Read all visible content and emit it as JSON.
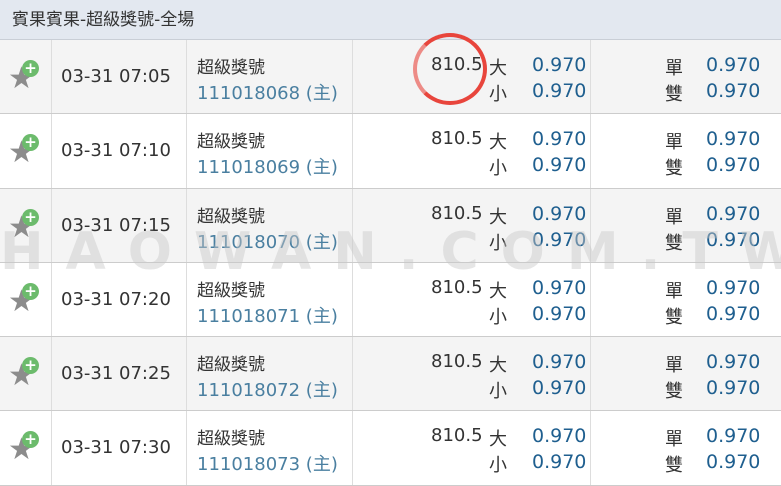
{
  "title": "賓果賓果-超級獎號-全場",
  "watermark": "HAOWAN.COM.TW",
  "labels": {
    "big": "大",
    "small": "小",
    "odd": "單",
    "even": "雙"
  },
  "rows": [
    {
      "time": "03-31 07:05",
      "game": "超級獎號",
      "id": "111018068 (主)",
      "line": "810.5",
      "big": "0.970",
      "small": "0.970",
      "odd": "0.970",
      "even": "0.970"
    },
    {
      "time": "03-31 07:10",
      "game": "超級獎號",
      "id": "111018069 (主)",
      "line": "810.5",
      "big": "0.970",
      "small": "0.970",
      "odd": "0.970",
      "even": "0.970"
    },
    {
      "time": "03-31 07:15",
      "game": "超級獎號",
      "id": "111018070 (主)",
      "line": "810.5",
      "big": "0.970",
      "small": "0.970",
      "odd": "0.970",
      "even": "0.970"
    },
    {
      "time": "03-31 07:20",
      "game": "超級獎號",
      "id": "111018071 (主)",
      "line": "810.5",
      "big": "0.970",
      "small": "0.970",
      "odd": "0.970",
      "even": "0.970"
    },
    {
      "time": "03-31 07:25",
      "game": "超級獎號",
      "id": "111018072 (主)",
      "line": "810.5",
      "big": "0.970",
      "small": "0.970",
      "odd": "0.970",
      "even": "0.970"
    },
    {
      "time": "03-31 07:30",
      "game": "超級獎號",
      "id": "111018073 (主)",
      "line": "810.5",
      "big": "0.970",
      "small": "0.970",
      "odd": "0.970",
      "even": "0.970"
    }
  ]
}
